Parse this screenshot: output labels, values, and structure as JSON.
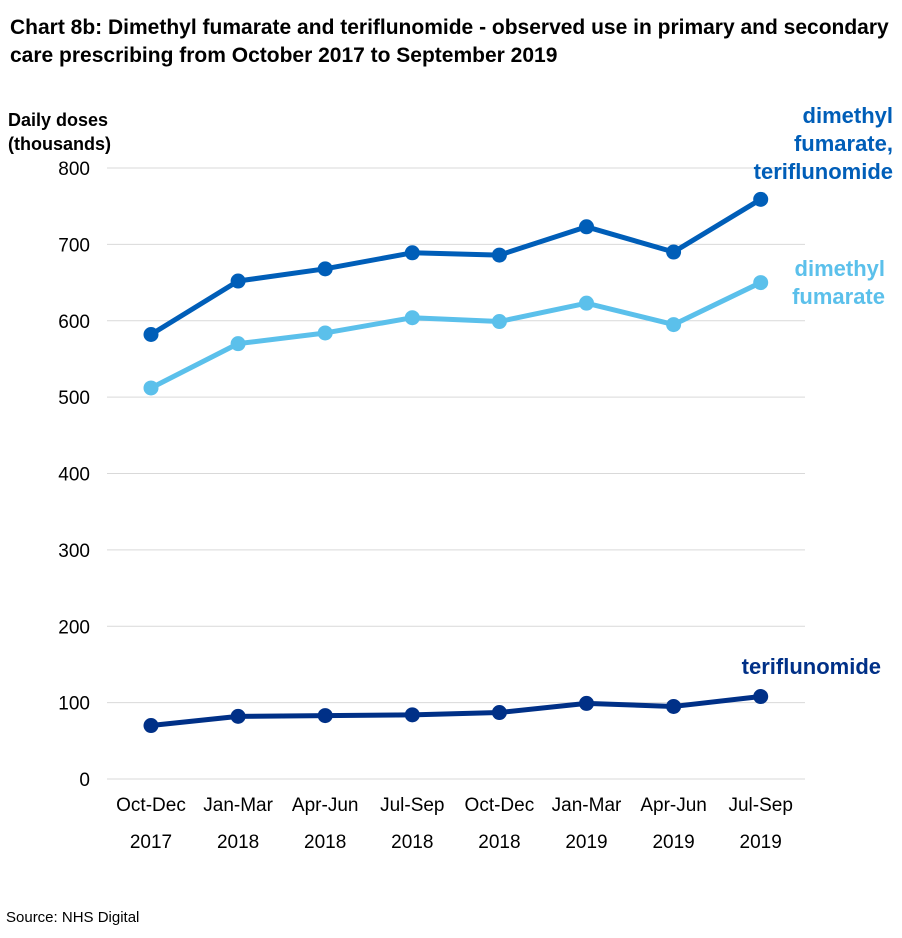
{
  "title": "Chart 8b: Dimethyl fumarate and teriflunomide - observed use in primary and secondary care prescribing from October 2017 to September 2019",
  "source": "Source: NHS Digital",
  "chart_data": {
    "type": "line",
    "title": "Chart 8b: Dimethyl fumarate and teriflunomide - observed use in primary and secondary care prescribing from October 2017 to September 2019",
    "ylabel_lines": [
      "Daily doses",
      "(thousands)"
    ],
    "xlabel": "",
    "categories": [
      {
        "period": "Oct-Dec",
        "year": "2017"
      },
      {
        "period": "Jan-Mar",
        "year": "2018"
      },
      {
        "period": "Apr-Jun",
        "year": "2018"
      },
      {
        "period": "Jul-Sep",
        "year": "2018"
      },
      {
        "period": "Oct-Dec",
        "year": "2018"
      },
      {
        "period": "Jan-Mar",
        "year": "2019"
      },
      {
        "period": "Apr-Jun",
        "year": "2019"
      },
      {
        "period": "Jul-Sep",
        "year": "2019"
      }
    ],
    "ylim": [
      0,
      800
    ],
    "yticks": [
      0,
      100,
      200,
      300,
      400,
      500,
      600,
      700,
      800
    ],
    "grid": true,
    "legend": "direct labels at line ends",
    "series": [
      {
        "name": "dimethyl fumarate, teriflunomide",
        "label_lines": [
          "dimethyl",
          "fumarate,",
          "teriflunomide"
        ],
        "color": "#005EB8",
        "values": [
          582,
          652,
          668,
          689,
          686,
          723,
          690,
          759
        ]
      },
      {
        "name": "dimethyl fumarate",
        "label_lines": [
          "dimethyl",
          "fumarate"
        ],
        "color": "#5BC0EB",
        "values": [
          512,
          570,
          584,
          604,
          599,
          623,
          595,
          650
        ]
      },
      {
        "name": "teriflunomide",
        "label_lines": [
          "teriflunomide"
        ],
        "color": "#003087",
        "values": [
          70,
          82,
          83,
          84,
          87,
          99,
          95,
          108
        ]
      }
    ]
  }
}
